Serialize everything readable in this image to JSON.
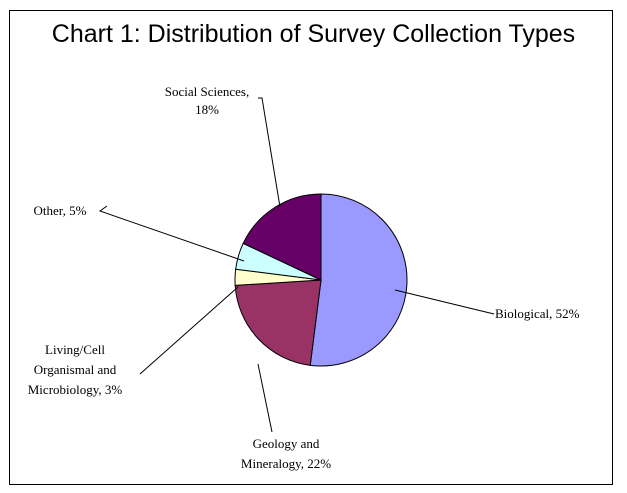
{
  "chart_data": {
    "type": "pie",
    "title": "Chart 1: Distribution of Survey Collection Types",
    "slices": [
      {
        "name": "Biological",
        "value": 52,
        "color": "#9999ff",
        "label_lines": [
          "Biological, 52%"
        ]
      },
      {
        "name": "Geology and Mineralogy",
        "value": 22,
        "color": "#993366",
        "label_lines": [
          "Geology and",
          "Mineralogy, 22%"
        ]
      },
      {
        "name": "Living/Cell Organismal and Microbiology",
        "value": 3,
        "color": "#ffffcc",
        "label_lines": [
          "Living/Cell",
          "Organismal and",
          "Microbiology, 3%"
        ]
      },
      {
        "name": "Other",
        "value": 5,
        "color": "#ccffff",
        "label_lines": [
          "Other, 5%"
        ]
      },
      {
        "name": "Social Sciences",
        "value": 18,
        "color": "#660066",
        "label_lines": [
          "Social Sciences,",
          "18%"
        ]
      }
    ],
    "start_angle_deg": 0,
    "direction": "clockwise",
    "legend": "none",
    "label_style": "leader-lines"
  }
}
